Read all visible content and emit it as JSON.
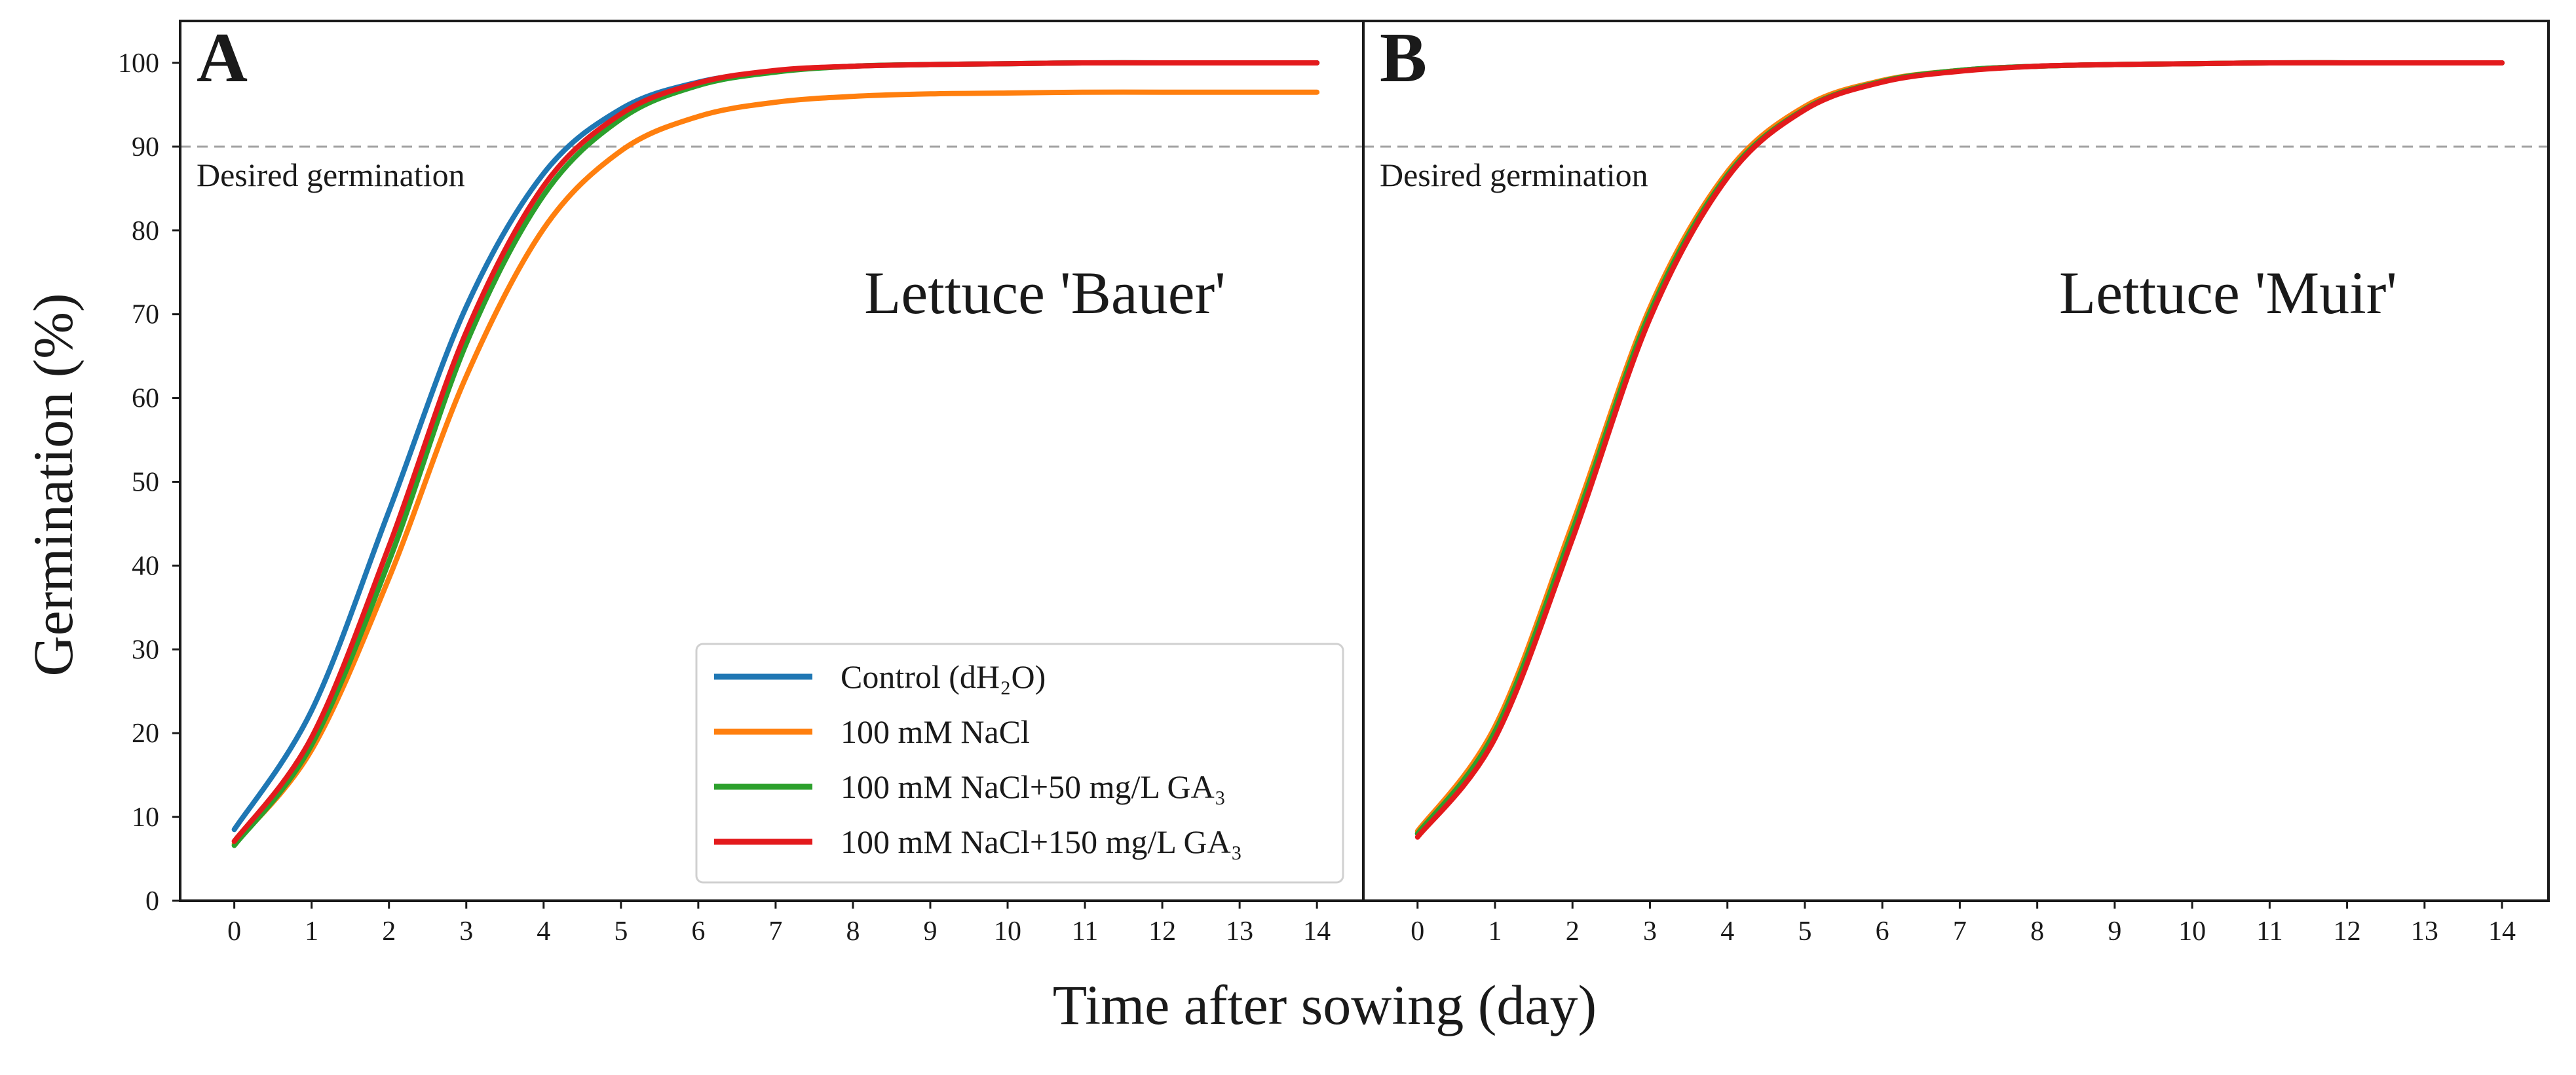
{
  "chart_data": [
    {
      "type": "line",
      "panel_label": "A",
      "cultivar_label": "Lettuce 'Bauer'",
      "xlabel": "Time after sowing (day)",
      "ylabel": "Germination (%)",
      "xlim": [
        -0.7,
        14.6
      ],
      "ylim": [
        0,
        105
      ],
      "xticks": [
        "0",
        "1",
        "2",
        "3",
        "4",
        "5",
        "6",
        "7",
        "8",
        "9",
        "10",
        "11",
        "12",
        "13",
        "14"
      ],
      "yticks": [
        "0",
        "10",
        "20",
        "30",
        "40",
        "50",
        "60",
        "70",
        "80",
        "90",
        "100"
      ],
      "reference_line": {
        "y": 90,
        "label": "Desired germination",
        "style": "dashed",
        "color": "#a0a0a0"
      },
      "x": [
        0,
        1,
        2,
        3,
        4,
        5,
        6,
        7,
        8,
        9,
        10,
        11,
        12,
        13,
        14
      ],
      "series": [
        {
          "name": "Control (dH2O)",
          "color": "#1f77b4",
          "values": [
            8.5,
            22.7,
            46.5,
            70.9,
            86.8,
            94.5,
            97.7,
            99.0,
            99.6,
            99.8,
            99.9,
            100.0,
            100.0,
            100.0,
            100.0
          ]
        },
        {
          "name": "100 mM NaCl",
          "color": "#ff7f0e",
          "values": [
            6.8,
            18.0,
            38.5,
            62.6,
            80.2,
            89.5,
            93.6,
            95.3,
            96.0,
            96.3,
            96.4,
            96.5,
            96.5,
            96.5,
            96.5
          ]
        },
        {
          "name": "100 mM NaCl+50 mg/L GA3",
          "color": "#2ca02c",
          "values": [
            6.6,
            18.6,
            40.5,
            66.5,
            84.2,
            93.3,
            97.3,
            98.9,
            99.6,
            99.8,
            99.9,
            100.0,
            100.0,
            100.0,
            100.0
          ]
        },
        {
          "name": "100 mM NaCl+150 mg/L GA3",
          "color": "#e31a1c",
          "values": [
            7.1,
            19.5,
            42.3,
            67.9,
            85.3,
            93.9,
            97.6,
            99.1,
            99.6,
            99.8,
            99.9,
            100.0,
            100.0,
            100.0,
            100.0
          ]
        }
      ],
      "legend_position": "lower-right",
      "legend": [
        {
          "label": "Control (dH₂O)",
          "color": "#1f77b4"
        },
        {
          "label": "100 mM NaCl",
          "color": "#ff7f0e"
        },
        {
          "label": "100 mM NaCl+50 mg/L GA₃",
          "color": "#2ca02c"
        },
        {
          "label": "100 mM NaCl+150 mg/L GA₃",
          "color": "#e31a1c"
        }
      ]
    },
    {
      "type": "line",
      "panel_label": "B",
      "cultivar_label": "Lettuce 'Muir'",
      "xlabel": "Time after sowing (day)",
      "ylabel": "Germination (%)",
      "xlim": [
        -0.7,
        14.6
      ],
      "ylim": [
        0,
        105
      ],
      "xticks": [
        "0",
        "1",
        "2",
        "3",
        "4",
        "5",
        "6",
        "7",
        "8",
        "9",
        "10",
        "11",
        "12",
        "13",
        "14"
      ],
      "reference_line": {
        "y": 90,
        "label": "Desired germination",
        "style": "dashed",
        "color": "#a0a0a0"
      },
      "x": [
        0,
        1,
        2,
        3,
        4,
        5,
        6,
        7,
        8,
        9,
        10,
        11,
        12,
        13,
        14
      ],
      "series": [
        {
          "name": "Control (dH2O)",
          "color": "#1f77b4",
          "values": [
            8.0,
            20.0,
            44.0,
            70.0,
            86.5,
            94.5,
            97.8,
            99.1,
            99.6,
            99.8,
            99.9,
            100.0,
            100.0,
            100.0,
            100.0
          ]
        },
        {
          "name": "100 mM NaCl",
          "color": "#ff7f0e",
          "values": [
            8.3,
            20.8,
            45.0,
            70.8,
            87.0,
            94.8,
            97.9,
            99.1,
            99.6,
            99.8,
            99.9,
            100.0,
            100.0,
            100.0,
            100.0
          ]
        },
        {
          "name": "100 mM NaCl+50 mg/L GA3",
          "color": "#2ca02c",
          "values": [
            8.0,
            20.2,
            44.2,
            70.2,
            86.6,
            94.5,
            97.8,
            99.1,
            99.6,
            99.8,
            99.9,
            100.0,
            100.0,
            100.0,
            100.0
          ]
        },
        {
          "name": "100 mM NaCl+150 mg/L GA3",
          "color": "#e31a1c",
          "values": [
            7.6,
            19.4,
            43.2,
            69.5,
            86.3,
            94.4,
            97.7,
            99.0,
            99.6,
            99.8,
            99.9,
            100.0,
            100.0,
            100.0,
            100.0
          ]
        }
      ]
    }
  ]
}
